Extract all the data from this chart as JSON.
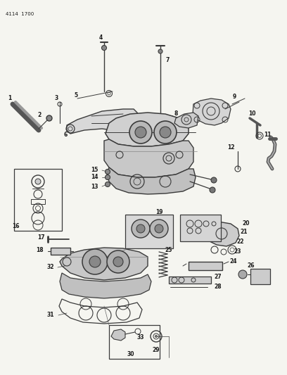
{
  "title": "4114  1700",
  "bg_color": "#f5f5f0",
  "line_color": "#3a3a3a",
  "text_color": "#1a1a1a",
  "fig_width": 4.08,
  "fig_height": 5.33,
  "dpi": 100
}
